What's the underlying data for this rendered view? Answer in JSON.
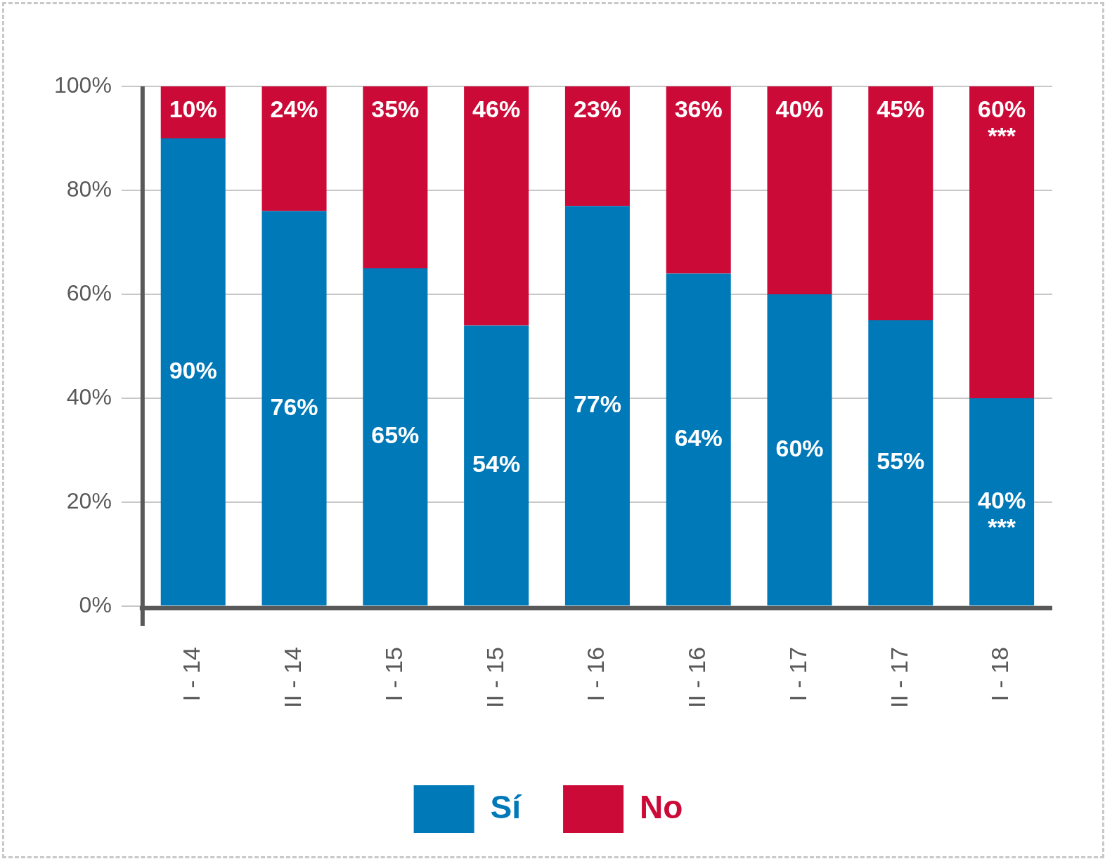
{
  "chart_data": {
    "type": "bar",
    "stacked": true,
    "categories": [
      "I - 14",
      "II - 14",
      "I - 15",
      "II - 15",
      "I - 16",
      "II - 16",
      "I - 17",
      "II - 17",
      "I - 18"
    ],
    "series": [
      {
        "name": "Sí",
        "color": "#0079b8",
        "values": [
          90,
          76,
          65,
          54,
          77,
          64,
          60,
          55,
          40
        ],
        "value_labels": [
          "90%",
          "76%",
          "65%",
          "54%",
          "77%",
          "64%",
          "60%",
          "55%",
          "40%\n***"
        ]
      },
      {
        "name": "No",
        "color": "#cc0a37",
        "values": [
          10,
          24,
          35,
          46,
          23,
          36,
          40,
          45,
          60
        ],
        "value_labels": [
          "10%",
          "24%",
          "35%",
          "46%",
          "23%",
          "36%",
          "40%",
          "45%",
          "60%\n***"
        ]
      }
    ],
    "ylim": [
      0,
      100
    ],
    "yticks": [
      {
        "value": 0,
        "label": "0%"
      },
      {
        "value": 20,
        "label": "20%"
      },
      {
        "value": 40,
        "label": "40%"
      },
      {
        "value": 60,
        "label": "60%"
      },
      {
        "value": 80,
        "label": "80%"
      },
      {
        "value": 100,
        "label": "100%"
      }
    ],
    "grid": "y",
    "legend": "bottom"
  }
}
